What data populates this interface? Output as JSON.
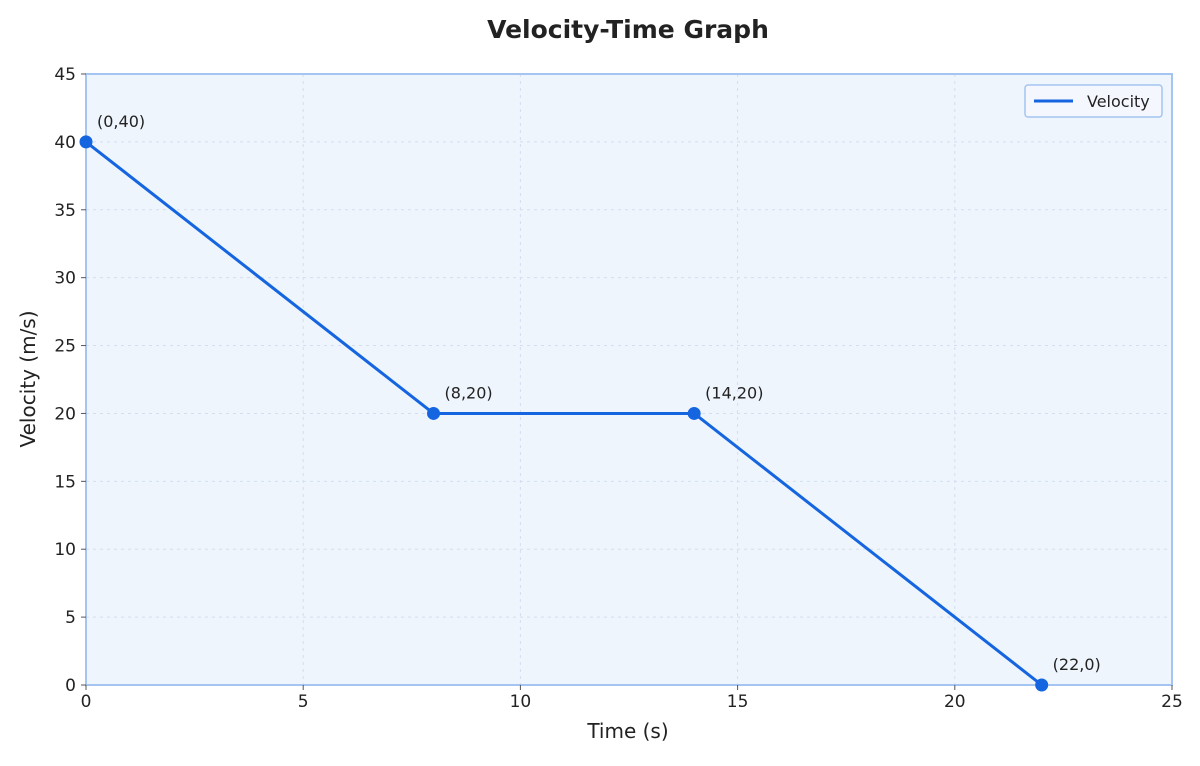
{
  "chart_data": {
    "type": "line",
    "title": "Velocity-Time Graph",
    "xlabel": "Time (s)",
    "ylabel": "Velocity (m/s)",
    "xlim": [
      0,
      25
    ],
    "ylim": [
      0,
      45
    ],
    "xticks": [
      0,
      5,
      10,
      15,
      20,
      25
    ],
    "yticks": [
      0,
      5,
      10,
      15,
      20,
      25,
      30,
      35,
      40,
      45
    ],
    "grid": true,
    "legend_position": "top-right",
    "series": [
      {
        "name": "Velocity",
        "color": "#1565e0",
        "x": [
          0,
          8,
          14,
          22
        ],
        "y": [
          40,
          20,
          20,
          0
        ],
        "point_labels": [
          "(0,40)",
          "(8,20)",
          "(14,20)",
          "(22,0)"
        ]
      }
    ],
    "colors": {
      "plot_background": "#eef5fd",
      "plot_border": "#a4c4f2",
      "grid": "#d3def0"
    }
  }
}
